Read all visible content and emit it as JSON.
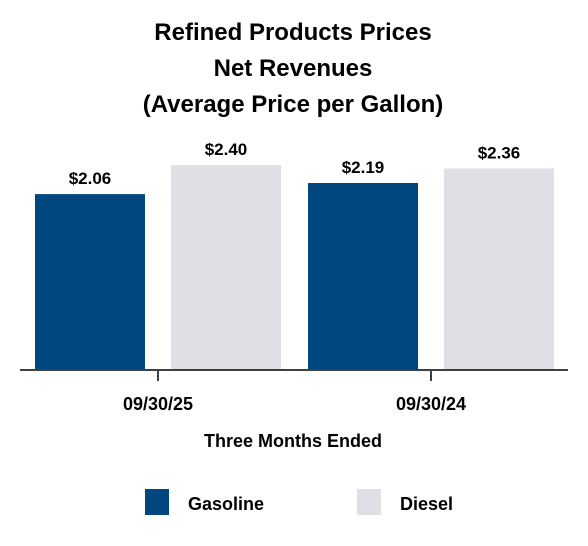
{
  "chart_data": {
    "type": "bar",
    "title_lines": [
      "Refined Products Prices",
      "Net Revenues",
      "(Average Price per Gallon)"
    ],
    "categories": [
      "09/30/25",
      "09/30/24"
    ],
    "xlabel": "Three Months Ended",
    "ylabel": "",
    "ylim": [
      0,
      2.6
    ],
    "grid": false,
    "legend_position": "bottom",
    "series": [
      {
        "name": "Gasoline",
        "color": "#00467f",
        "values": [
          2.06,
          2.19
        ],
        "labels": [
          "$2.06",
          "$2.19"
        ]
      },
      {
        "name": "Diesel",
        "color": "#dfe0e6",
        "values": [
          2.4,
          2.36
        ],
        "labels": [
          "$2.40",
          "$2.36"
        ]
      }
    ]
  }
}
